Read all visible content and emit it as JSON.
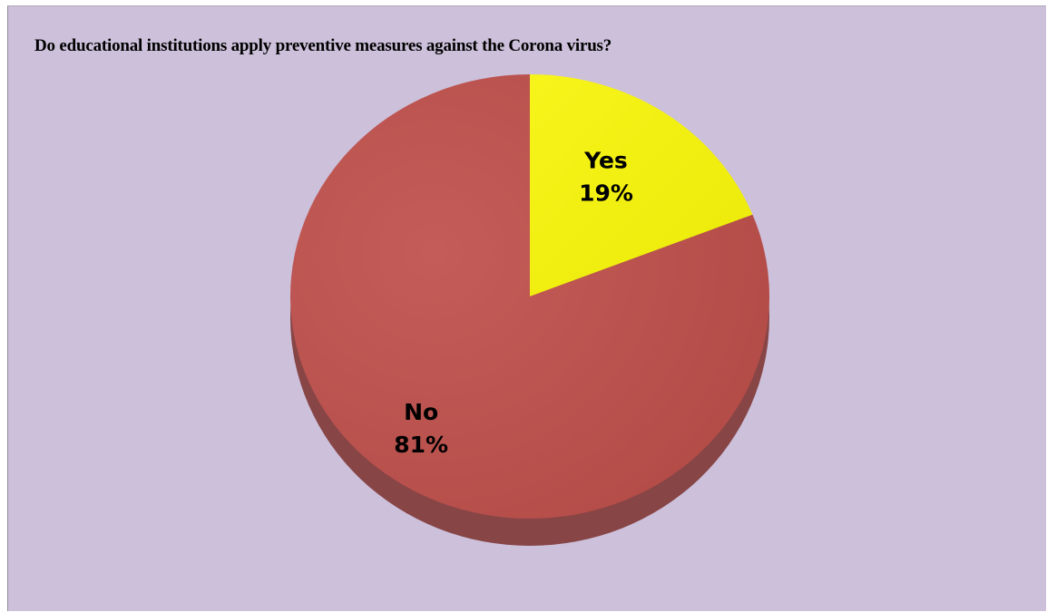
{
  "chart_data": {
    "type": "pie",
    "title": "Do educational institutions apply preventive measures against the Corona virus?",
    "slices": [
      {
        "label": "Yes",
        "value": 19,
        "value_label": "19%",
        "color": "#f4f20b"
      },
      {
        "label": "No",
        "value": 81,
        "value_label": "81%",
        "color": "#bc524f"
      }
    ],
    "background_color": "#ccc0da",
    "legend": "none"
  }
}
